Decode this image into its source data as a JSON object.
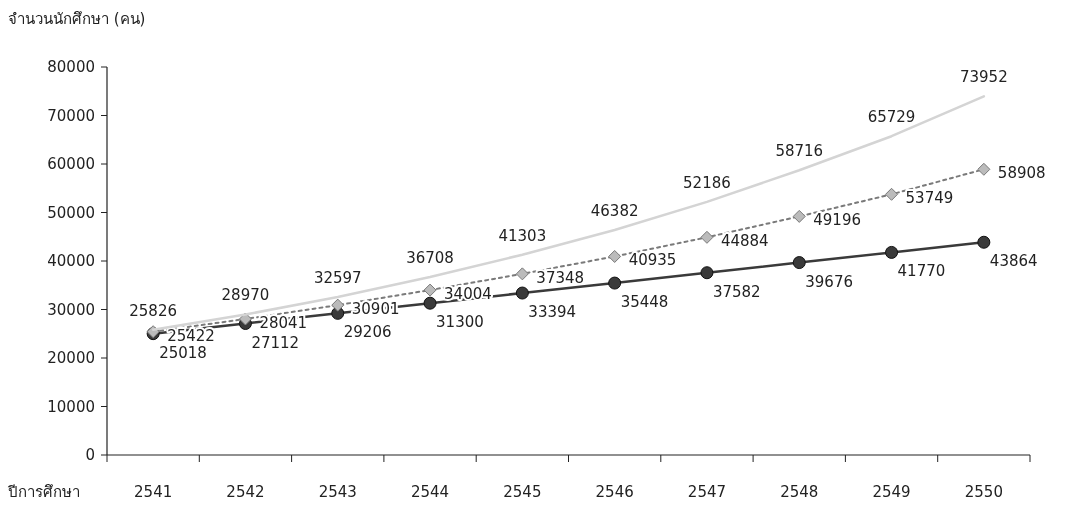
{
  "chart_data": {
    "type": "line",
    "ylabel": "จำนวนนักศึกษา (คน)",
    "xlabel": "ปีการศึกษา",
    "categories": [
      "2541",
      "2542",
      "2543",
      "2544",
      "2545",
      "2546",
      "2547",
      "2548",
      "2549",
      "2550"
    ],
    "series": [
      {
        "color": "#3a3a3a",
        "marker": "circle",
        "line_style": "solid",
        "values": [
          25018,
          27112,
          29206,
          31300,
          33394,
          35448,
          37582,
          39676,
          41770,
          43864
        ]
      },
      {
        "color": "#7a7a7a",
        "marker": "diamond",
        "line_style": "dotted",
        "values": [
          25422,
          28041,
          30901,
          34004,
          37348,
          40935,
          44884,
          49196,
          53749,
          58908
        ]
      },
      {
        "color": "#d4d4d4",
        "marker": "none",
        "line_style": "solid",
        "values": [
          25826,
          28970,
          32597,
          36708,
          41303,
          46382,
          52186,
          58716,
          65729,
          73952
        ]
      }
    ],
    "ylim": [
      0,
      80000
    ],
    "yticks": [
      0,
      10000,
      20000,
      30000,
      40000,
      50000,
      60000,
      70000,
      80000
    ],
    "data_labels": true
  }
}
